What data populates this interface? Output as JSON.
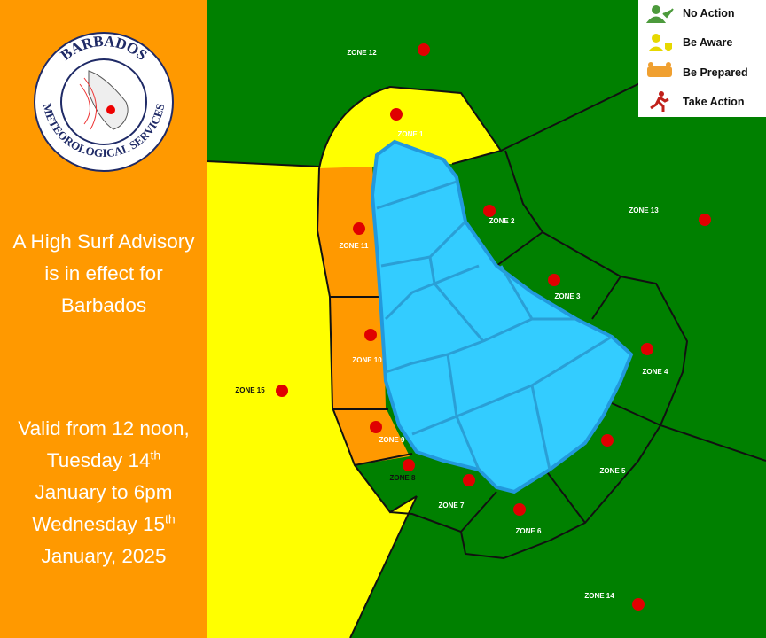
{
  "logo": {
    "top": "BARBADOS",
    "bottom": "METEOROLOGICAL SERVICES"
  },
  "advisory": "A High Surf Advisory is in effect for Barbados",
  "validity": {
    "part1": "Valid from 12 noon, Tuesday 14",
    "sup1": "th",
    "part2": " January to 6pm Wednesday 15",
    "sup2": "th",
    "part3": " January, 2025"
  },
  "legend": [
    {
      "label": "No Action"
    },
    {
      "label": "Be Aware"
    },
    {
      "label": "Be Prepared"
    },
    {
      "label": "Take Action"
    }
  ],
  "zones": [
    {
      "label": "ZONE 12"
    },
    {
      "label": "ZONE 1"
    },
    {
      "label": "ZONE 2"
    },
    {
      "label": "ZONE 13"
    },
    {
      "label": "ZONE 11"
    },
    {
      "label": "ZONE 3"
    },
    {
      "label": "ZONE 10"
    },
    {
      "label": "ZONE 4"
    },
    {
      "label": "ZONE 15"
    },
    {
      "label": "ZONE 9"
    },
    {
      "label": "ZONE 5"
    },
    {
      "label": "ZONE 8"
    },
    {
      "label": "ZONE 7"
    },
    {
      "label": "ZONE 6"
    },
    {
      "label": "ZONE 14"
    }
  ]
}
